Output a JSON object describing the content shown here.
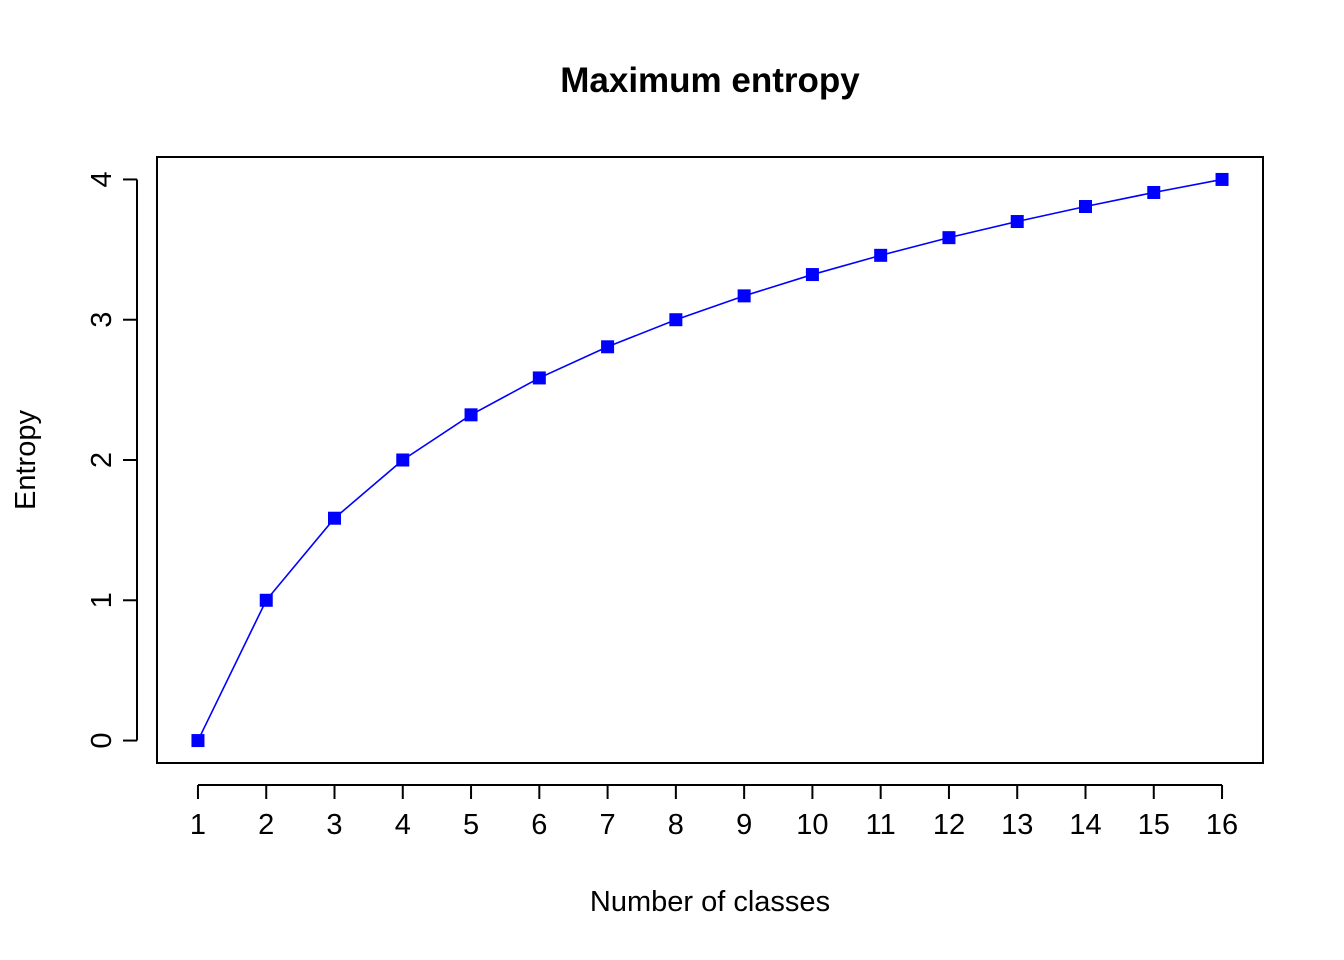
{
  "chart_data": {
    "type": "line",
    "title": "Maximum entropy",
    "xlabel": "Number of classes",
    "ylabel": "Entropy",
    "x": [
      1,
      2,
      3,
      4,
      5,
      6,
      7,
      8,
      9,
      10,
      11,
      12,
      13,
      14,
      15,
      16
    ],
    "series": [
      {
        "values": [
          0,
          1,
          1.585,
          2,
          2.322,
          2.585,
          2.807,
          3,
          3.17,
          3.322,
          3.459,
          3.585,
          3.7,
          3.807,
          3.907,
          4
        ],
        "color": "#0000ff",
        "marker": "square",
        "line": "solid"
      }
    ],
    "xticks": [
      "1",
      "2",
      "3",
      "4",
      "5",
      "6",
      "7",
      "8",
      "9",
      "10",
      "11",
      "12",
      "13",
      "14",
      "15",
      "16"
    ],
    "yticks": [
      "0",
      "1",
      "2",
      "3",
      "4"
    ],
    "xlim": [
      0.4,
      16.6
    ],
    "ylim": [
      -0.16,
      4.16
    ],
    "grid": false,
    "legend": "none"
  }
}
